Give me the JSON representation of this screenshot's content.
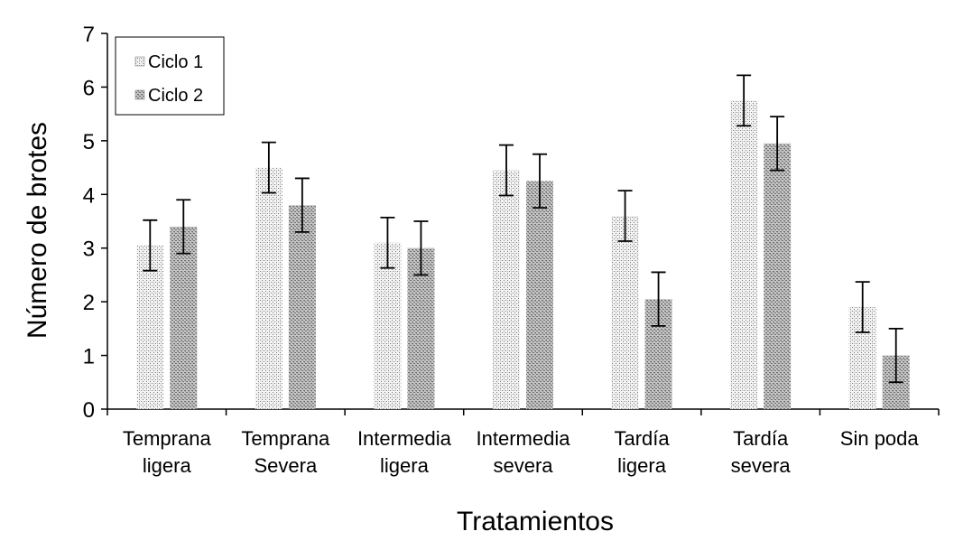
{
  "chart_data": {
    "type": "bar",
    "title": "",
    "xlabel": "Tratamientos",
    "ylabel": "Número de brotes",
    "ylim": [
      0,
      7
    ],
    "yticks": [
      "0",
      "1",
      "2",
      "3",
      "4",
      "5",
      "6",
      "7"
    ],
    "categories": [
      [
        "Temprana",
        "ligera"
      ],
      [
        "Temprana",
        "Severa"
      ],
      [
        "Intermedia",
        "ligera"
      ],
      [
        "Intermedia",
        "severa"
      ],
      [
        "Tardía",
        "ligera"
      ],
      [
        "Tardía",
        "severa"
      ],
      [
        "Sin poda"
      ]
    ],
    "series": [
      {
        "name": "Ciclo 1",
        "values": [
          3.05,
          4.5,
          3.1,
          4.45,
          3.6,
          5.75,
          1.9
        ],
        "errors": [
          0.47,
          0.47,
          0.47,
          0.47,
          0.47,
          0.47,
          0.47
        ]
      },
      {
        "name": "Ciclo 2",
        "values": [
          3.4,
          3.8,
          3.0,
          4.25,
          2.05,
          4.95,
          1.0
        ],
        "errors": [
          0.5,
          0.5,
          0.5,
          0.5,
          0.5,
          0.5,
          0.5
        ]
      }
    ],
    "legend_position": "top-left",
    "grid": false
  }
}
